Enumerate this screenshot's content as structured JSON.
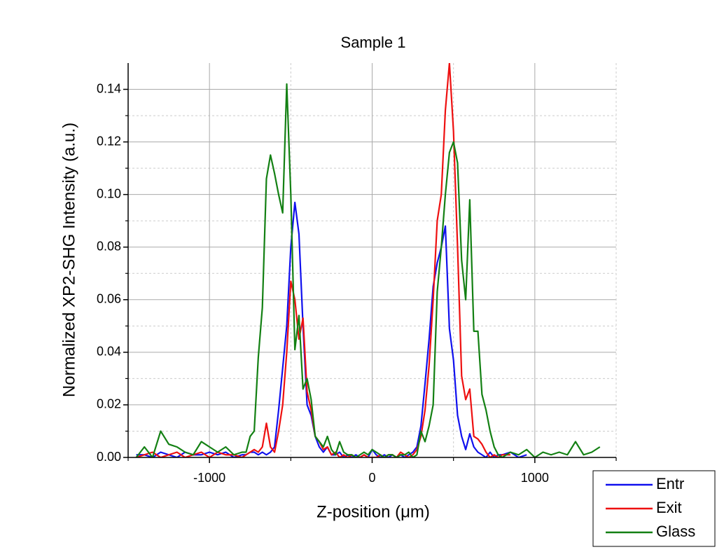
{
  "chart_data": {
    "type": "line",
    "title": "Sample 1",
    "x_label": "Z-position (μm)",
    "y_label": "Normalized XP2-SHG Intensity (a.u.)",
    "xlim": [
      -1500,
      1500
    ],
    "ylim": [
      0,
      0.15
    ],
    "xticks": [
      -1000,
      0,
      1000
    ],
    "yticks": [
      {
        "value": 0,
        "label": "0.00"
      },
      {
        "value": 0.02,
        "label": "0.02"
      },
      {
        "value": 0.04,
        "label": "0.04"
      },
      {
        "value": 0.06,
        "label": "0.06"
      },
      {
        "value": 0.08,
        "label": "0.08"
      },
      {
        "value": 0.1,
        "label": "0.10"
      },
      {
        "value": 0.12,
        "label": "0.12"
      },
      {
        "value": 0.14,
        "label": "0.14"
      }
    ],
    "grid": true,
    "legend_position": "bottom-right",
    "x": [
      -1450,
      -1400,
      -1350,
      -1300,
      -1250,
      -1200,
      -1150,
      -1100,
      -1050,
      -1000,
      -950,
      -900,
      -850,
      -800,
      -775,
      -750,
      -725,
      -700,
      -675,
      -650,
      -625,
      -600,
      -575,
      -550,
      -525,
      -500,
      -475,
      -450,
      -425,
      -400,
      -375,
      -350,
      -325,
      -300,
      -275,
      -250,
      -225,
      -200,
      -175,
      -150,
      -125,
      -100,
      -75,
      -50,
      -25,
      0,
      25,
      50,
      75,
      100,
      125,
      150,
      175,
      200,
      225,
      250,
      275,
      300,
      325,
      350,
      375,
      400,
      425,
      450,
      475,
      500,
      525,
      550,
      575,
      600,
      625,
      650,
      675,
      700,
      725,
      750,
      775,
      800,
      850,
      900,
      950,
      1000,
      1050,
      1100,
      1150,
      1200,
      1250,
      1300,
      1350,
      1400
    ],
    "series": [
      {
        "name": "Entr",
        "color": "#1010ee",
        "values": [
          0.001,
          0.001,
          0.0,
          0.002,
          0.001,
          0.0,
          0.002,
          0.001,
          0.001,
          0.002,
          0.001,
          0.002,
          0.0,
          0.001,
          0.001,
          0.002,
          0.002,
          0.001,
          0.002,
          0.001,
          0.002,
          0.004,
          0.018,
          0.034,
          0.05,
          0.08,
          0.097,
          0.085,
          0.05,
          0.02,
          0.016,
          0.008,
          0.004,
          0.002,
          0.004,
          0.001,
          0.001,
          0.002,
          0.0,
          0.001,
          0.0,
          0.001,
          0.0,
          0.001,
          0.0,
          0.003,
          0.001,
          0.0,
          0.001,
          0.0,
          0.001,
          0.0,
          0.001,
          0.0,
          0.001,
          0.002,
          0.004,
          0.012,
          0.028,
          0.045,
          0.065,
          0.074,
          0.08,
          0.088,
          0.049,
          0.037,
          0.016,
          0.008,
          0.003,
          0.009,
          0.004,
          0.002,
          0.001,
          0.0,
          0.002,
          0.0,
          0.001,
          0.001,
          0.002,
          0.0,
          0.001,
          null,
          null,
          null,
          null,
          null,
          null,
          null,
          null,
          null
        ]
      },
      {
        "name": "Exit",
        "color": "#ee1010",
        "values": [
          0.0,
          0.001,
          0.002,
          0.0,
          0.001,
          0.002,
          0.0,
          0.001,
          0.002,
          0.0,
          0.002,
          0.001,
          0.001,
          0.0,
          0.001,
          0.002,
          0.003,
          0.002,
          0.004,
          0.013,
          0.004,
          0.002,
          0.01,
          0.02,
          0.04,
          0.067,
          0.06,
          0.045,
          0.053,
          0.025,
          0.018,
          0.008,
          0.006,
          0.003,
          0.004,
          0.001,
          0.002,
          0.0,
          0.001,
          0.0,
          0.001,
          0.0,
          0.0,
          0.001,
          0.0,
          0.0,
          0.0,
          0.001,
          0.0,
          0.001,
          0.001,
          0.0,
          0.002,
          0.001,
          0.0,
          0.001,
          0.003,
          0.008,
          0.018,
          0.035,
          0.06,
          0.09,
          0.1,
          0.132,
          0.15,
          0.124,
          0.08,
          0.031,
          0.022,
          0.026,
          0.008,
          0.007,
          0.005,
          0.002,
          0.0,
          0.001,
          0.0,
          0.001,
          0.001,
          null,
          null,
          null,
          null,
          null,
          null,
          null,
          null,
          null,
          null,
          null
        ]
      },
      {
        "name": "Glass",
        "color": "#138013",
        "values": [
          0.0,
          0.004,
          0.0,
          0.01,
          0.005,
          0.004,
          0.002,
          0.001,
          0.006,
          0.004,
          0.002,
          0.004,
          0.001,
          0.002,
          0.002,
          0.008,
          0.01,
          0.038,
          0.057,
          0.106,
          0.115,
          0.108,
          0.1,
          0.093,
          0.142,
          0.1,
          0.041,
          0.054,
          0.026,
          0.03,
          0.022,
          0.008,
          0.006,
          0.004,
          0.008,
          0.003,
          0.001,
          0.006,
          0.002,
          0.001,
          0.001,
          0.0,
          0.001,
          0.002,
          0.001,
          0.003,
          0.002,
          0.001,
          0.0,
          0.001,
          0.001,
          0.0,
          0.001,
          0.001,
          0.002,
          0.0,
          0.001,
          0.01,
          0.006,
          0.012,
          0.02,
          0.063,
          0.08,
          0.1,
          0.116,
          0.12,
          0.112,
          0.075,
          0.06,
          0.098,
          0.048,
          0.048,
          0.024,
          0.018,
          0.01,
          0.004,
          0.001,
          0.0,
          0.002,
          0.001,
          0.003,
          0.0,
          0.002,
          0.001,
          0.002,
          0.001,
          0.006,
          0.001,
          0.002,
          0.004
        ]
      }
    ]
  }
}
